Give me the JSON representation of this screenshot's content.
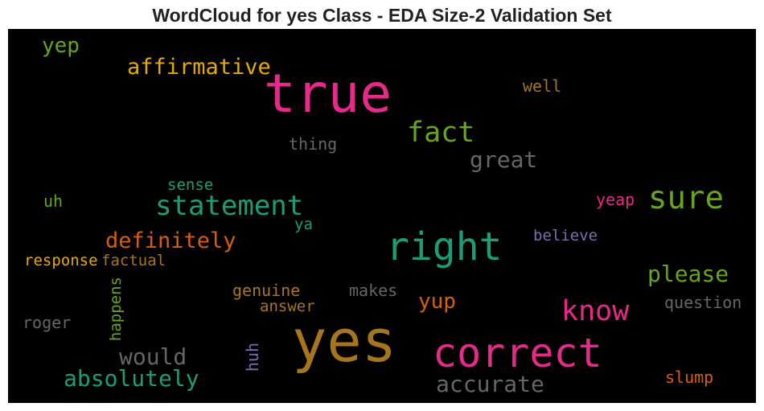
{
  "title": "WordCloud for yes Class - EDA Size-2 Validation Set",
  "words": {
    "yep": {
      "text": "yep",
      "color": "#66a61e"
    },
    "affirmative": {
      "text": "affirmative",
      "color": "#e6ab02"
    },
    "true": {
      "text": "true",
      "color": "#e7298a"
    },
    "well": {
      "text": "well",
      "color": "#a6761d"
    },
    "fact": {
      "text": "fact",
      "color": "#66a61e"
    },
    "thing": {
      "text": "thing",
      "color": "#666666"
    },
    "great": {
      "text": "great",
      "color": "#666666"
    },
    "sense": {
      "text": "sense",
      "color": "#1b9e77"
    },
    "statement": {
      "text": "statement",
      "color": "#1b9e77"
    },
    "sure": {
      "text": "sure",
      "color": "#66a61e"
    },
    "yeap": {
      "text": "yeap",
      "color": "#e7298a"
    },
    "uh": {
      "text": "uh",
      "color": "#66a61e"
    },
    "ya": {
      "text": "ya",
      "color": "#1b9e77"
    },
    "definitely": {
      "text": "definitely",
      "color": "#d95f02"
    },
    "right": {
      "text": "right",
      "color": "#1b9e77"
    },
    "believe": {
      "text": "believe",
      "color": "#7570b3"
    },
    "response": {
      "text": "response",
      "color": "#e6ab02"
    },
    "factual": {
      "text": "factual",
      "color": "#a6761d"
    },
    "please": {
      "text": "please",
      "color": "#66a61e"
    },
    "genuine": {
      "text": "genuine",
      "color": "#a6761d"
    },
    "makes": {
      "text": "makes",
      "color": "#666666"
    },
    "happens": {
      "text": "happens",
      "color": "#66a61e"
    },
    "answer": {
      "text": "answer",
      "color": "#a6761d"
    },
    "yup": {
      "text": "yup",
      "color": "#d95f02"
    },
    "know": {
      "text": "know",
      "color": "#e7298a"
    },
    "question": {
      "text": "question",
      "color": "#666666"
    },
    "roger": {
      "text": "roger",
      "color": "#666666"
    },
    "yes": {
      "text": "yes",
      "color": "#a6761d"
    },
    "correct": {
      "text": "correct",
      "color": "#e7298a"
    },
    "would": {
      "text": "would",
      "color": "#666666"
    },
    "huh": {
      "text": "huh",
      "color": "#7570b3"
    },
    "absolutely": {
      "text": "absolutely",
      "color": "#1b9e77"
    },
    "accurate": {
      "text": "accurate",
      "color": "#666666"
    },
    "slump": {
      "text": "slump",
      "color": "#d95f02"
    }
  }
}
